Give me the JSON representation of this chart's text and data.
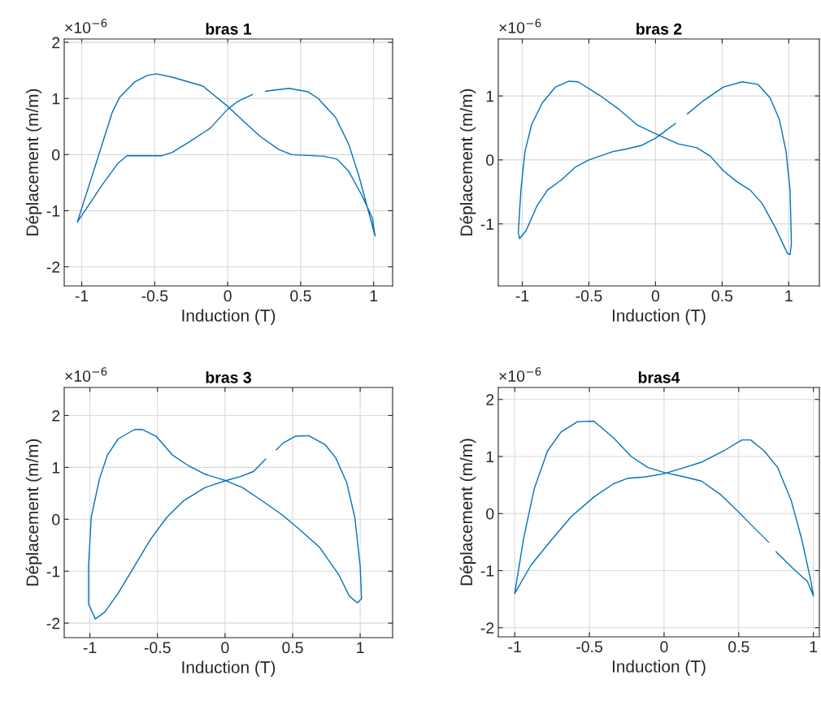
{
  "chart_data": [
    {
      "type": "line",
      "title": "bras 1",
      "xlabel": "Induction (T)",
      "ylabel": "Déplacement (m/m)",
      "annotations": [
        "×10$^{−6}$"
      ],
      "xlim": [
        -1.12,
        1.13
      ],
      "xticks": [
        -1,
        -0.5,
        0,
        0.5,
        1
      ],
      "ylim": [
        -2.34,
        2.06
      ],
      "yticks": [
        -2,
        -1,
        0,
        1,
        2
      ],
      "grid": true,
      "series": [
        {
          "color": "#0072bd",
          "x": [
            -1.03,
            -0.89,
            -0.79,
            -0.74,
            -0.64,
            -0.55,
            -0.49,
            -0.38,
            -0.17,
            0,
            0.11,
            0.22,
            0.35,
            0.44,
            0.66,
            0.75,
            0.83,
            0.92,
            0.99,
            1.01,
            0.9,
            0.83,
            0.74,
            0.62,
            0.55,
            0.42,
            0.26,
            0.21,
            0.17,
            0.07,
            0,
            -0.12,
            -0.26,
            -0.38,
            -0.45,
            -0.56,
            -0.69,
            -0.75,
            -0.86,
            -0.97,
            -1.03
          ],
          "values": [
            -1.2,
            -0.06,
            0.76,
            1.02,
            1.29,
            1.41,
            1.44,
            1.38,
            1.22,
            0.86,
            0.59,
            0.33,
            0.09,
            0,
            -0.03,
            -0.08,
            -0.3,
            -0.73,
            -1.12,
            -1.45,
            -0.39,
            0.18,
            0.66,
            1.0,
            1.12,
            1.18,
            1.13,
            null,
            1.07,
            0.95,
            0.81,
            0.47,
            0.23,
            0.04,
            -0.02,
            -0.02,
            -0.02,
            -0.15,
            -0.54,
            -0.97,
            -1.2
          ]
        }
      ]
    },
    {
      "type": "line",
      "title": "bras 2",
      "xlabel": "Induction (T)",
      "ylabel": "Déplacement (m/m)",
      "annotations": [
        "×10$^{−6}$"
      ],
      "xlim": [
        -1.18,
        1.23
      ],
      "xticks": [
        -1,
        -0.5,
        0,
        0.5,
        1
      ],
      "ylim": [
        -1.97,
        1.89
      ],
      "yticks": [
        -1,
        0,
        1
      ],
      "grid": true,
      "series": [
        {
          "color": "#0072bd",
          "x": [
            -1.02,
            -1.03,
            -1.01,
            -0.98,
            -0.93,
            -0.85,
            -0.75,
            -0.65,
            -0.58,
            -0.42,
            -0.28,
            -0.14,
            0,
            0.17,
            0.31,
            0.41,
            0.51,
            0.61,
            0.71,
            0.8,
            0.9,
            0.99,
            1.01,
            1.02,
            1.01,
            0.98,
            0.93,
            0.86,
            0.77,
            0.65,
            0.51,
            0.35,
            0.24,
            0.2,
            0.15,
            0,
            -0.1,
            -0.22,
            -0.32,
            -0.5,
            -0.6,
            -0.71,
            -0.81,
            -0.89,
            -0.97,
            -1.02
          ],
          "values": [
            -1.23,
            -1.14,
            -0.47,
            0.13,
            0.55,
            0.89,
            1.14,
            1.23,
            1.22,
            1.01,
            0.8,
            0.55,
            0.41,
            0.25,
            0.19,
            0.06,
            -0.17,
            -0.34,
            -0.47,
            -0.68,
            -1.06,
            -1.46,
            -1.48,
            -1.31,
            -0.47,
            0.13,
            0.63,
            0.97,
            1.18,
            1.22,
            1.14,
            0.91,
            0.72,
            null,
            0.57,
            0.34,
            0.23,
            0.17,
            0.13,
            0,
            -0.11,
            -0.32,
            -0.47,
            -0.72,
            -1.1,
            -1.23
          ]
        }
      ]
    },
    {
      "type": "line",
      "title": "bras 3",
      "xlabel": "Induction (T)",
      "ylabel": "Déplacement (m/m)",
      "annotations": [
        "×10$^{−6}$"
      ],
      "xlim": [
        -1.19,
        1.24
      ],
      "xticks": [
        -1,
        -0.5,
        0,
        0.5,
        1
      ],
      "ylim": [
        -2.28,
        2.54
      ],
      "yticks": [
        -2,
        -1,
        0,
        1,
        2
      ],
      "grid": true,
      "series": [
        {
          "color": "#0072bd",
          "x": [
            -0.96,
            -1.01,
            -1.01,
            -0.99,
            -0.93,
            -0.87,
            -0.79,
            -0.67,
            -0.61,
            -0.51,
            -0.39,
            -0.27,
            -0.15,
            0,
            0.13,
            0.25,
            0.42,
            0.54,
            0.7,
            0.84,
            0.92,
            0.98,
            1.01,
            1.0,
            0.96,
            0.9,
            0.82,
            0.74,
            0.62,
            0.52,
            0.43,
            0.38,
            0.34,
            0.3,
            0.21,
            0.11,
            0,
            -0.15,
            -0.31,
            -0.43,
            -0.55,
            -0.67,
            -0.79,
            -0.89,
            -0.96
          ],
          "values": [
            -1.92,
            -1.63,
            -0.9,
            0.04,
            0.77,
            1.24,
            1.55,
            1.73,
            1.73,
            1.6,
            1.24,
            1.03,
            0.87,
            0.75,
            0.61,
            0.4,
            0.09,
            -0.17,
            -0.54,
            -1.06,
            -1.48,
            -1.61,
            -1.53,
            -0.9,
            0.04,
            0.71,
            1.18,
            1.44,
            1.61,
            1.6,
            1.47,
            1.34,
            null,
            1.16,
            0.92,
            0.82,
            0.74,
            0.61,
            0.35,
            0.04,
            -0.38,
            -0.9,
            -1.42,
            -1.79,
            -1.92
          ]
        }
      ]
    },
    {
      "type": "line",
      "title": "bras4",
      "xlabel": "Induction (T)",
      "ylabel": "Déplacement (m/m)",
      "annotations": [
        "×10$^{−6}$"
      ],
      "xlim": [
        -1.11,
        1.04
      ],
      "xticks": [
        -1,
        -0.5,
        0,
        0.5,
        1
      ],
      "ylim": [
        -2.16,
        2.21
      ],
      "yticks": [
        -2,
        -1,
        0,
        1,
        2
      ],
      "grid": true,
      "series": [
        {
          "color": "#0072bd",
          "x": [
            -1,
            -0.94,
            -0.87,
            -0.78,
            -0.69,
            -0.58,
            -0.47,
            -0.34,
            -0.22,
            -0.11,
            0,
            0.14,
            0.25,
            0.38,
            0.49,
            0.6,
            0.7,
            0.72,
            0.75,
            0.87,
            0.96,
            1,
            0.98,
            0.92,
            0.85,
            0.76,
            0.67,
            0.58,
            0.52,
            0.4,
            0.25,
            0.14,
            0,
            -0.13,
            -0.24,
            -0.34,
            -0.47,
            -0.62,
            -0.76,
            -0.89,
            -1
          ],
          "values": [
            -1.4,
            -0.43,
            0.43,
            1.1,
            1.43,
            1.61,
            1.62,
            1.33,
            1.0,
            0.81,
            0.72,
            0.64,
            0.57,
            0.33,
            0.05,
            -0.24,
            -0.5,
            null,
            -0.67,
            -0.98,
            -1.19,
            -1.44,
            -1.14,
            -0.43,
            0.24,
            0.81,
            1.1,
            1.29,
            1.29,
            1.1,
            0.9,
            0.81,
            0.7,
            0.64,
            0.62,
            0.52,
            0.29,
            -0.05,
            -0.48,
            -0.9,
            -1.4
          ]
        }
      ]
    }
  ]
}
